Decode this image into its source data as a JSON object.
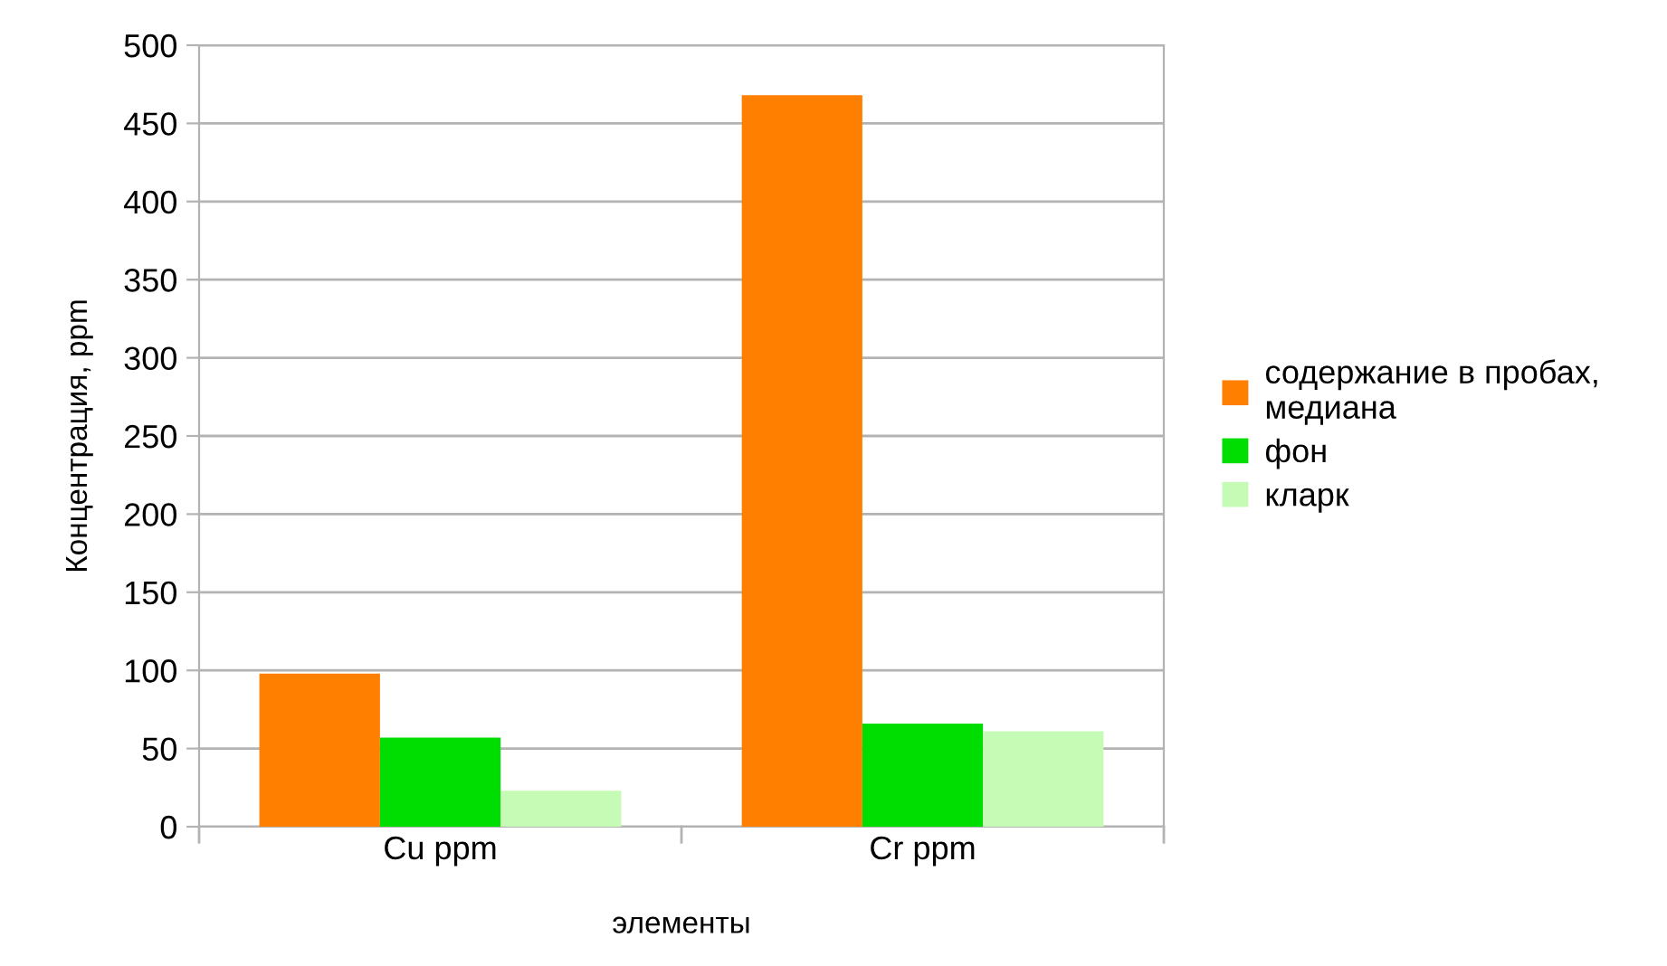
{
  "chart_data": {
    "type": "bar",
    "xlabel": "элементы",
    "ylabel": "Концентрация, ppm",
    "categories": [
      "Cu ppm",
      "Cr ppm"
    ],
    "series": [
      {
        "name": "содержание в пробах, медиана",
        "color": "#ff7f00",
        "values": [
          98,
          468
        ]
      },
      {
        "name": "фон",
        "color": "#00dd00",
        "values": [
          57,
          66
        ]
      },
      {
        "name": "кларк",
        "color": "#c6fbb6",
        "values": [
          23,
          61
        ]
      }
    ],
    "ylim": [
      0,
      500
    ],
    "yticks": [
      0,
      50,
      100,
      150,
      200,
      250,
      300,
      350,
      400,
      450,
      500
    ],
    "grid": "y",
    "legend": "right"
  }
}
